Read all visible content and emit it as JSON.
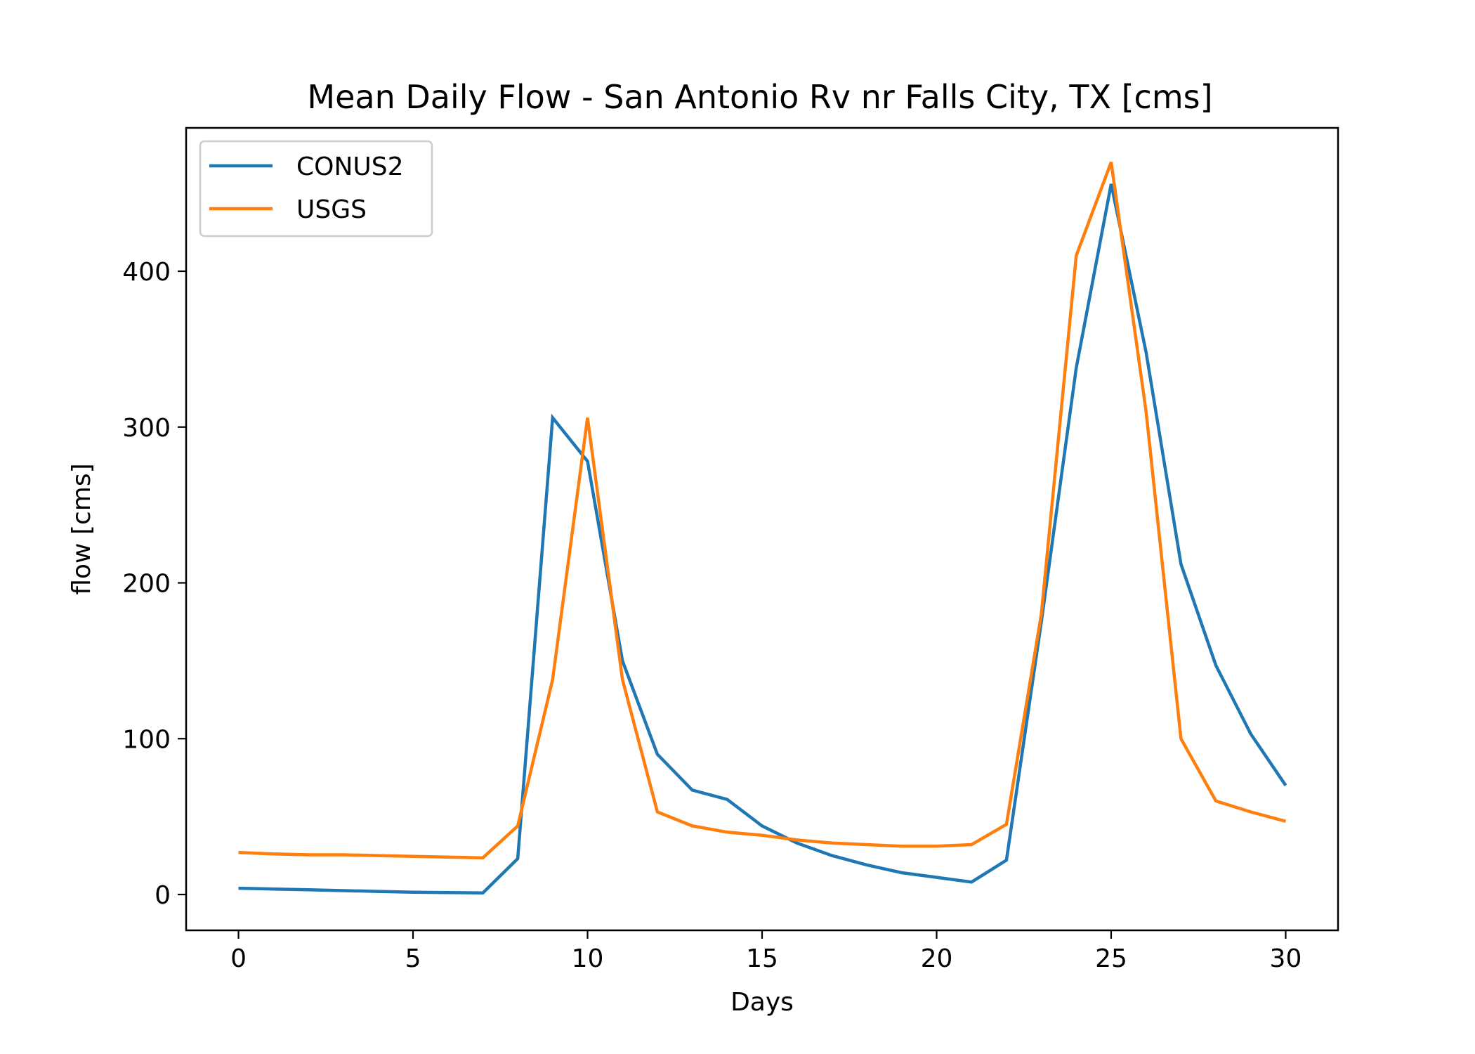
{
  "chart_data": {
    "type": "line",
    "title": "Mean Daily Flow - San Antonio Rv nr Falls City, TX [cms]",
    "xlabel": "Days",
    "ylabel": "flow [cms]",
    "xlim": [
      -1.5,
      31.5
    ],
    "ylim": [
      -23,
      492
    ],
    "xticks": [
      0,
      5,
      10,
      15,
      20,
      25,
      30
    ],
    "yticks": [
      0,
      100,
      200,
      300,
      400
    ],
    "grid": false,
    "legend_position": "upper left",
    "x": [
      0,
      1,
      2,
      3,
      4,
      5,
      6,
      7,
      8,
      9,
      10,
      11,
      12,
      13,
      14,
      15,
      16,
      17,
      18,
      19,
      20,
      21,
      22,
      23,
      24,
      25,
      26,
      27,
      28,
      29,
      30
    ],
    "series": [
      {
        "name": "CONUS2",
        "color": "#1f77b4",
        "values": [
          4,
          3.5,
          3,
          2.5,
          2,
          1.5,
          1.2,
          1,
          23,
          306,
          278,
          150,
          90,
          67,
          61,
          44,
          33,
          25,
          19,
          14,
          11,
          8,
          22,
          175,
          338,
          456,
          348,
          212,
          147,
          103,
          70
        ]
      },
      {
        "name": "USGS",
        "color": "#ff7f0e",
        "values": [
          27,
          26,
          25.5,
          25.5,
          25,
          24.5,
          24,
          23.5,
          44,
          138,
          306,
          138,
          53,
          44,
          40,
          38,
          35,
          33,
          32,
          31,
          31,
          32,
          45,
          180,
          410,
          470,
          310,
          100,
          60,
          53,
          47
        ]
      }
    ]
  }
}
